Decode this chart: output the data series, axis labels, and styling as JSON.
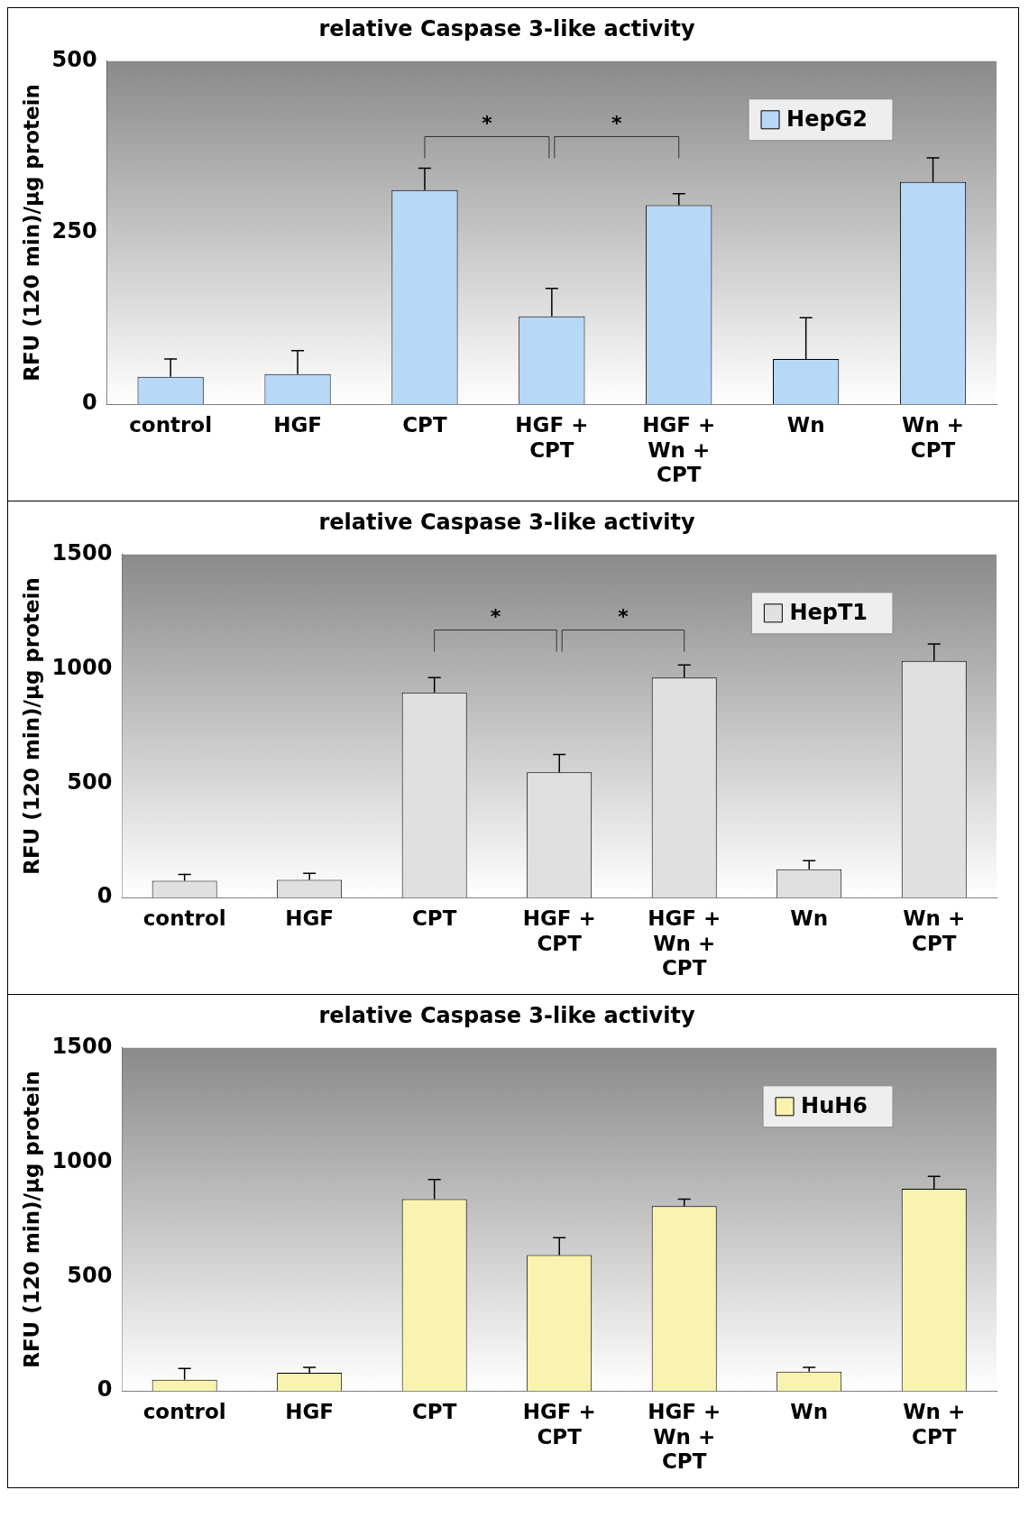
{
  "chart_data": [
    {
      "type": "bar",
      "title": "relative Caspase 3-like activity",
      "ylabel": "RFU (120 min)/µg protein",
      "categories": [
        "control",
        "HGF",
        "CPT",
        "HGF + CPT",
        "HGF + Wn + CPT",
        "Wn",
        "Wn + CPT"
      ],
      "series": [
        {
          "name": "HepG2",
          "color": "#b8d8f8",
          "values": [
            40,
            44,
            312,
            128,
            290,
            66,
            324
          ],
          "errors": [
            [
              40,
              66
            ],
            [
              44,
              78
            ],
            [
              312,
              344
            ],
            [
              128,
              169
            ],
            [
              290,
              307
            ],
            [
              66,
              126
            ],
            [
              324,
              359
            ]
          ]
        }
      ],
      "ylim": [
        0,
        500
      ],
      "yticks": [
        0,
        250,
        500
      ],
      "grid": false,
      "legend": "top right",
      "annotations": [
        "*",
        "*"
      ]
    },
    {
      "type": "bar",
      "title": "relative Caspase 3-like activity",
      "ylabel": "RFU (120 min)/µg protein",
      "categories": [
        "control",
        "HGF",
        "CPT",
        "HGF + CPT",
        "HGF + Wn + CPT",
        "Wn",
        "Wn + CPT"
      ],
      "series": [
        {
          "name": "HepT1",
          "color": "#e0e0e0",
          "values": [
            74,
            78,
            897,
            548,
            962,
            124,
            1035
          ],
          "errors": [
            [
              74,
              101
            ],
            [
              78,
              106
            ],
            [
              897,
              962
            ],
            [
              548,
              626
            ],
            [
              962,
              1017
            ],
            [
              124,
              161
            ],
            [
              1035,
              1109
            ]
          ]
        }
      ],
      "ylim": [
        0,
        1500
      ],
      "yticks": [
        0,
        500,
        1000,
        1500
      ],
      "grid": false,
      "legend": "top right",
      "annotations": [
        "*",
        "*"
      ]
    },
    {
      "type": "bar",
      "title": "relative Caspase 3-like activity",
      "ylabel": "RFU (120 min)/µg protein",
      "categories": [
        "control",
        "HGF",
        "CPT",
        "HGF + CPT",
        "HGF + Wn + CPT",
        "Wn",
        "Wn + CPT"
      ],
      "series": [
        {
          "name": "HuH6",
          "color": "#f8f4b0",
          "values": [
            49,
            80,
            839,
            594,
            808,
            85,
            884
          ],
          "errors": [
            [
              49,
              98
            ],
            [
              80,
              103
            ],
            [
              839,
              924
            ],
            [
              594,
              670
            ],
            [
              808,
              839
            ],
            [
              85,
              103
            ],
            [
              884,
              938
            ]
          ]
        }
      ],
      "ylim": [
        0,
        1500
      ],
      "yticks": [
        0,
        500,
        1000,
        1500
      ],
      "grid": false,
      "legend": "top right"
    }
  ]
}
